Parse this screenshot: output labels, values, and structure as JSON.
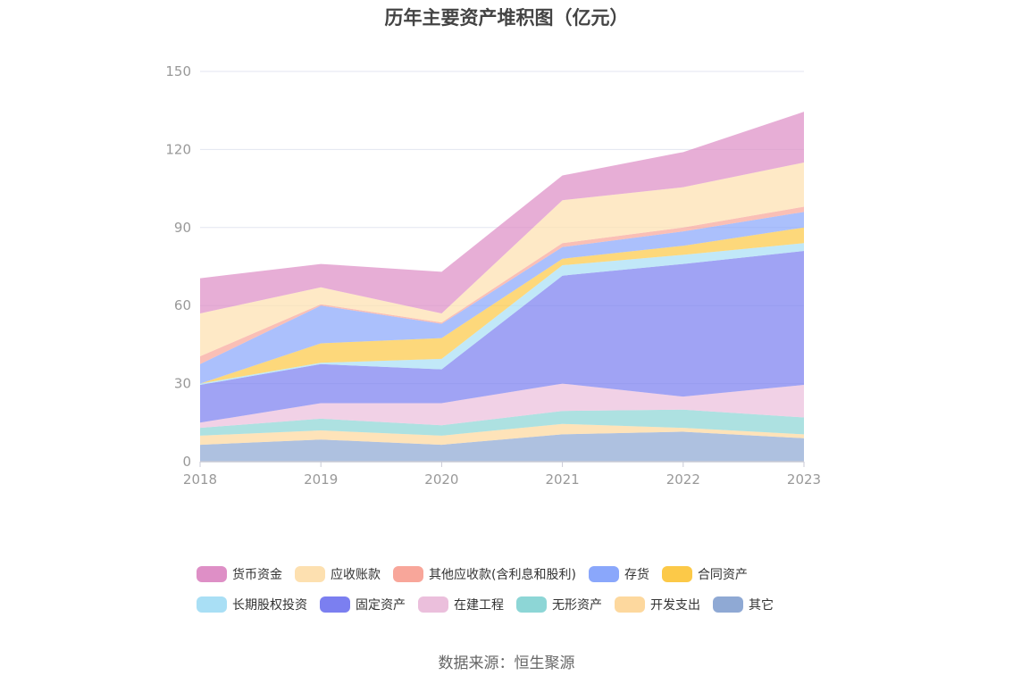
{
  "chart_data": {
    "type": "area",
    "title": "历年主要资产堆积图（亿元）",
    "x": [
      "2018",
      "2019",
      "2020",
      "2021",
      "2022",
      "2023"
    ],
    "ylim": [
      0,
      150
    ],
    "yticks": [
      0,
      30,
      60,
      90,
      120,
      150
    ],
    "grid": true,
    "legend_position": "bottom",
    "stacked": true,
    "series": [
      {
        "name": "其它",
        "color": "#8fa9d4",
        "values": [
          6.5,
          8.5,
          6.5,
          10.5,
          11.5,
          9
        ]
      },
      {
        "name": "开发支出",
        "color": "#fdd89e",
        "values": [
          3.5,
          3.5,
          3.5,
          4,
          1.5,
          1.5
        ]
      },
      {
        "name": "无形资产",
        "color": "#8dd6d6",
        "values": [
          3,
          4.5,
          4,
          5,
          7,
          6.5
        ]
      },
      {
        "name": "在建工程",
        "color": "#ebbfdc",
        "values": [
          2,
          6,
          8.5,
          10.5,
          5,
          12.5
        ]
      },
      {
        "name": "固定资产",
        "color": "#7b7ff0",
        "values": [
          14.5,
          15,
          13,
          41.5,
          51,
          51.5
        ]
      },
      {
        "name": "长期股权投资",
        "color": "#a9dff5",
        "values": [
          0.5,
          0.5,
          4,
          4,
          3.5,
          3
        ]
      },
      {
        "name": "合同资产",
        "color": "#fcc948",
        "values": [
          0,
          7.5,
          8,
          2.5,
          3.5,
          6
        ]
      },
      {
        "name": "存货",
        "color": "#8aa7fb",
        "values": [
          7.5,
          14.5,
          5.5,
          4.5,
          5.5,
          6
        ]
      },
      {
        "name": "其他应收款(含利息和股利)",
        "color": "#f8a69a",
        "values": [
          3,
          0.5,
          0.5,
          1.5,
          1.5,
          2
        ]
      },
      {
        "name": "应收账款",
        "color": "#fde0b0",
        "values": [
          16.5,
          6.5,
          3.5,
          16.5,
          15.5,
          17
        ]
      },
      {
        "name": "货币资金",
        "color": "#de8fc6",
        "values": [
          13.5,
          9,
          16,
          9.5,
          13.5,
          19.5
        ]
      }
    ]
  },
  "legend_order": [
    [
      "货币资金",
      "应收账款",
      "其他应收款(含利息和股利)",
      "存货",
      "合同资产"
    ],
    [
      "长期股权投资",
      "固定资产",
      "在建工程",
      "无形资产",
      "开发支出",
      "其它"
    ]
  ],
  "source": "数据来源：恒生聚源"
}
